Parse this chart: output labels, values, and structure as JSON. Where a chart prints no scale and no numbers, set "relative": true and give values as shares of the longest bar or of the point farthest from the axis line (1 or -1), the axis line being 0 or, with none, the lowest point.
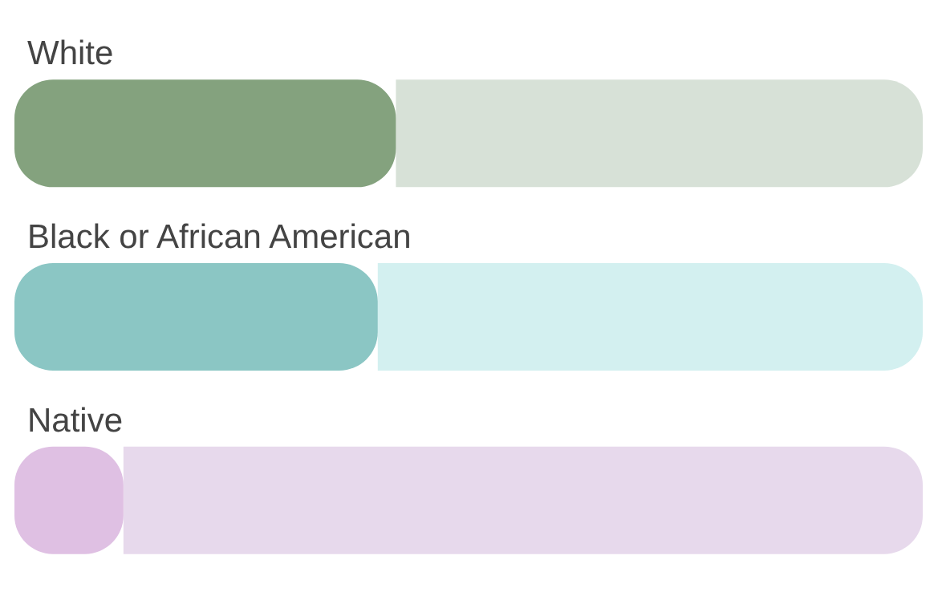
{
  "chart_data": {
    "type": "bar",
    "orientation": "horizontal",
    "stacked": true,
    "relative": true,
    "categories": [
      "White",
      "Black or African American",
      "Native"
    ],
    "series": [
      {
        "colors": [
          "#84a27e",
          "#8bc6c4",
          "#dfc0e3"
        ],
        "values": [
          0.42,
          0.4,
          0.12
        ]
      },
      {
        "colors": [
          "#d7e1d7",
          "#d3f0f0",
          "#e7d9ec"
        ],
        "values": [
          0.58,
          0.6,
          0.88
        ]
      }
    ]
  }
}
